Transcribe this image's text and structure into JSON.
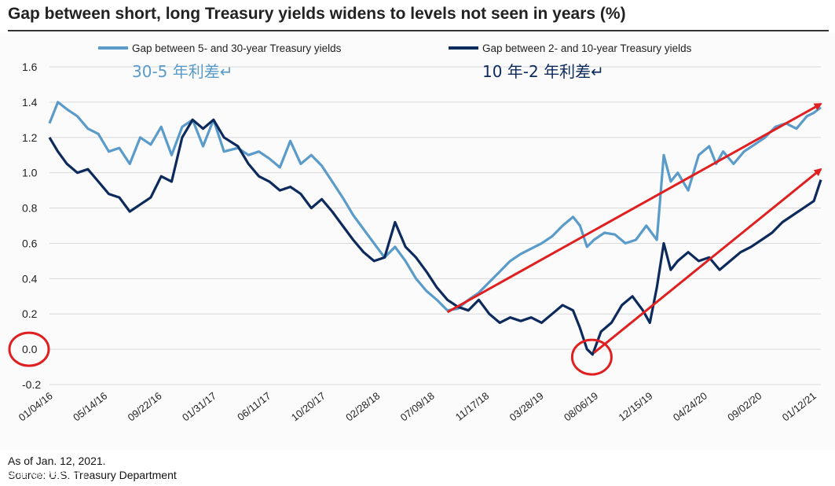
{
  "title": "Gap between short, long Treasury yields widens to levels not seen in years (%)",
  "footer": {
    "as_of": "As of Jan. 12, 2021.",
    "source": "Source: U.S. Treasury Department",
    "watermark": "头条 @财经夜行"
  },
  "colors": {
    "series_light": "#5b9bc9",
    "series_dark": "#0d2a5c",
    "arrow": "#e02020",
    "circle": "#e02020",
    "grid": "#d9d9d9",
    "axis_text": "#222222"
  },
  "chart_data": {
    "type": "line",
    "title": "Gap between short, long Treasury yields widens to levels not seen in years (%)",
    "xlabel": "",
    "ylabel": "",
    "ylim": [
      -0.2,
      1.6
    ],
    "yticks": [
      -0.2,
      0.0,
      0.2,
      0.4,
      0.6,
      0.8,
      1.0,
      1.2,
      1.4,
      1.6
    ],
    "ytick_labels": [
      "-0.2",
      "0.0",
      "0.2",
      "0.4",
      "0.6",
      "0.8",
      "1.0",
      "1.2",
      "1.4",
      "1.6"
    ],
    "grid": true,
    "x_tick_labels": [
      "01/04/16",
      "05/14/16",
      "09/22/16",
      "01/31/17",
      "06/11/17",
      "10/20/17",
      "02/28/18",
      "07/09/18",
      "11/17/18",
      "03/28/19",
      "08/06/19",
      "12/15/19",
      "04/24/20",
      "09/02/20",
      "01/12/21"
    ],
    "x_range_index": [
      0,
      14
    ],
    "series": [
      {
        "name": "Gap between 5- and 30-year Treasury yields",
        "annotation": "30-5 年利差↵",
        "points": [
          [
            0.0,
            1.28
          ],
          [
            0.12,
            1.4
          ],
          [
            0.25,
            1.36
          ],
          [
            0.4,
            1.32
          ],
          [
            0.55,
            1.25
          ],
          [
            0.7,
            1.22
          ],
          [
            0.85,
            1.12
          ],
          [
            1.0,
            1.14
          ],
          [
            1.15,
            1.05
          ],
          [
            1.3,
            1.2
          ],
          [
            1.45,
            1.16
          ],
          [
            1.6,
            1.26
          ],
          [
            1.75,
            1.1
          ],
          [
            1.9,
            1.26
          ],
          [
            2.05,
            1.3
          ],
          [
            2.2,
            1.15
          ],
          [
            2.35,
            1.3
          ],
          [
            2.5,
            1.12
          ],
          [
            2.7,
            1.14
          ],
          [
            2.85,
            1.1
          ],
          [
            3.0,
            1.12
          ],
          [
            3.15,
            1.08
          ],
          [
            3.3,
            1.03
          ],
          [
            3.45,
            1.18
          ],
          [
            3.6,
            1.05
          ],
          [
            3.75,
            1.1
          ],
          [
            3.9,
            1.04
          ],
          [
            4.05,
            0.95
          ],
          [
            4.2,
            0.86
          ],
          [
            4.35,
            0.76
          ],
          [
            4.5,
            0.68
          ],
          [
            4.65,
            0.6
          ],
          [
            4.8,
            0.52
          ],
          [
            4.95,
            0.58
          ],
          [
            5.1,
            0.5
          ],
          [
            5.25,
            0.4
          ],
          [
            5.4,
            0.33
          ],
          [
            5.55,
            0.28
          ],
          [
            5.7,
            0.22
          ],
          [
            5.85,
            0.23
          ],
          [
            6.0,
            0.28
          ],
          [
            6.15,
            0.32
          ],
          [
            6.3,
            0.38
          ],
          [
            6.45,
            0.44
          ],
          [
            6.6,
            0.5
          ],
          [
            6.75,
            0.54
          ],
          [
            6.9,
            0.57
          ],
          [
            7.05,
            0.6
          ],
          [
            7.2,
            0.64
          ],
          [
            7.35,
            0.7
          ],
          [
            7.5,
            0.75
          ],
          [
            7.6,
            0.7
          ],
          [
            7.7,
            0.58
          ],
          [
            7.8,
            0.62
          ],
          [
            7.95,
            0.66
          ],
          [
            8.1,
            0.65
          ],
          [
            8.25,
            0.6
          ],
          [
            8.4,
            0.62
          ],
          [
            8.55,
            0.7
          ],
          [
            8.7,
            0.62
          ],
          [
            8.8,
            1.1
          ],
          [
            8.9,
            0.95
          ],
          [
            9.0,
            1.0
          ],
          [
            9.15,
            0.9
          ],
          [
            9.3,
            1.1
          ],
          [
            9.45,
            1.15
          ],
          [
            9.55,
            1.05
          ],
          [
            9.65,
            1.12
          ],
          [
            9.8,
            1.05
          ],
          [
            9.95,
            1.12
          ],
          [
            10.1,
            1.16
          ],
          [
            10.25,
            1.2
          ],
          [
            10.4,
            1.26
          ],
          [
            10.55,
            1.28
          ],
          [
            10.7,
            1.25
          ],
          [
            10.85,
            1.32
          ],
          [
            10.95,
            1.34
          ],
          [
            11.05,
            1.37
          ]
        ]
      },
      {
        "name": "Gap between 2- and 10-year Treasury yields",
        "annotation": "10 年-2 年利差↵",
        "points": [
          [
            0.0,
            1.2
          ],
          [
            0.12,
            1.12
          ],
          [
            0.25,
            1.05
          ],
          [
            0.4,
            1.0
          ],
          [
            0.55,
            1.02
          ],
          [
            0.7,
            0.95
          ],
          [
            0.85,
            0.88
          ],
          [
            1.0,
            0.86
          ],
          [
            1.15,
            0.78
          ],
          [
            1.3,
            0.82
          ],
          [
            1.45,
            0.86
          ],
          [
            1.6,
            0.98
          ],
          [
            1.75,
            0.95
          ],
          [
            1.9,
            1.2
          ],
          [
            2.05,
            1.3
          ],
          [
            2.2,
            1.25
          ],
          [
            2.35,
            1.3
          ],
          [
            2.5,
            1.2
          ],
          [
            2.7,
            1.15
          ],
          [
            2.85,
            1.05
          ],
          [
            3.0,
            0.98
          ],
          [
            3.15,
            0.95
          ],
          [
            3.3,
            0.9
          ],
          [
            3.45,
            0.92
          ],
          [
            3.6,
            0.88
          ],
          [
            3.75,
            0.8
          ],
          [
            3.9,
            0.85
          ],
          [
            4.05,
            0.78
          ],
          [
            4.2,
            0.7
          ],
          [
            4.35,
            0.62
          ],
          [
            4.5,
            0.55
          ],
          [
            4.65,
            0.5
          ],
          [
            4.8,
            0.52
          ],
          [
            4.95,
            0.72
          ],
          [
            5.1,
            0.58
          ],
          [
            5.25,
            0.52
          ],
          [
            5.4,
            0.44
          ],
          [
            5.55,
            0.35
          ],
          [
            5.7,
            0.28
          ],
          [
            5.85,
            0.24
          ],
          [
            6.0,
            0.22
          ],
          [
            6.15,
            0.28
          ],
          [
            6.3,
            0.2
          ],
          [
            6.45,
            0.15
          ],
          [
            6.6,
            0.18
          ],
          [
            6.75,
            0.16
          ],
          [
            6.9,
            0.18
          ],
          [
            7.05,
            0.15
          ],
          [
            7.2,
            0.2
          ],
          [
            7.35,
            0.25
          ],
          [
            7.5,
            0.22
          ],
          [
            7.6,
            0.12
          ],
          [
            7.7,
            0.0
          ],
          [
            7.78,
            -0.03
          ],
          [
            7.9,
            0.1
          ],
          [
            8.05,
            0.15
          ],
          [
            8.2,
            0.25
          ],
          [
            8.35,
            0.3
          ],
          [
            8.5,
            0.22
          ],
          [
            8.6,
            0.15
          ],
          [
            8.7,
            0.35
          ],
          [
            8.8,
            0.6
          ],
          [
            8.9,
            0.45
          ],
          [
            9.0,
            0.5
          ],
          [
            9.15,
            0.55
          ],
          [
            9.3,
            0.5
          ],
          [
            9.45,
            0.52
          ],
          [
            9.6,
            0.45
          ],
          [
            9.75,
            0.5
          ],
          [
            9.9,
            0.55
          ],
          [
            10.05,
            0.58
          ],
          [
            10.2,
            0.62
          ],
          [
            10.35,
            0.66
          ],
          [
            10.5,
            0.72
          ],
          [
            10.65,
            0.76
          ],
          [
            10.8,
            0.8
          ],
          [
            10.95,
            0.84
          ],
          [
            11.05,
            0.96
          ]
        ]
      }
    ],
    "annotations": {
      "arrows": [
        {
          "from": [
            5.7,
            0.21
          ],
          "to": [
            11.05,
            1.39
          ]
        },
        {
          "from": [
            7.8,
            -0.02
          ],
          "to": [
            11.05,
            1.02
          ]
        }
      ],
      "circles": [
        {
          "label": "0.0 axis highlight",
          "at": "y-axis 0.0"
        },
        {
          "label": "2-10 inversion",
          "at": [
            7.78,
            0.0
          ]
        }
      ]
    }
  }
}
